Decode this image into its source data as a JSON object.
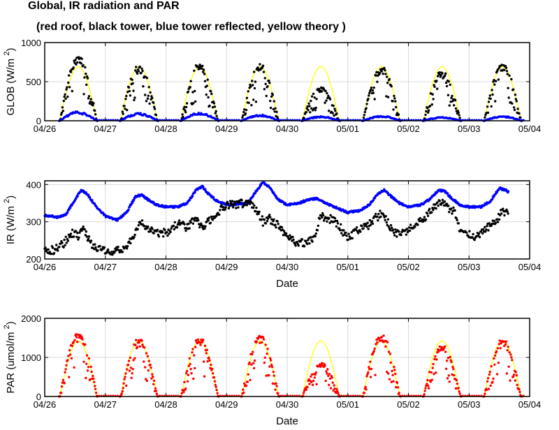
{
  "figure": {
    "title_line1": "Global, IR radiation and PAR",
    "title_line2": "(red roof, black tower, blue tower reflected, yellow theory )"
  },
  "chart_data": [
    {
      "type": "scatter",
      "ylabel": "GLOB (W/m",
      "ylabel_superscript": "2",
      "ylabel_close": ")",
      "xlabel": "",
      "x_ticks": [
        "04/26",
        "04/27",
        "04/28",
        "04/29",
        "04/30",
        "05/01",
        "05/02",
        "05/03",
        "05/04"
      ],
      "xlim": [
        "04/26",
        "05/04"
      ],
      "ylim": [
        0,
        1000
      ],
      "y_ticks": [
        0,
        500,
        1000
      ],
      "grid": true,
      "series": [
        {
          "color": "#ffff00",
          "kind": "line",
          "shape": "theory",
          "peaks": [
            690,
            690,
            690,
            690,
            690,
            690,
            690,
            690
          ]
        },
        {
          "color": "#000000",
          "kind": "dots",
          "shape": "cloudy",
          "peaks": [
            820,
            700,
            710,
            720,
            420,
            680,
            620,
            710
          ]
        },
        {
          "color": "#0000ff",
          "kind": "dots",
          "shape": "reflected",
          "peaks": [
            115,
            95,
            100,
            75,
            55,
            60,
            45,
            60
          ]
        }
      ]
    },
    {
      "type": "scatter",
      "ylabel": "IR (W/m",
      "ylabel_superscript": "2",
      "ylabel_close": ")",
      "xlabel": "Date",
      "x_ticks": [
        "04/26",
        "04/27",
        "04/28",
        "04/29",
        "04/30",
        "05/01",
        "05/02",
        "05/03",
        "05/04"
      ],
      "xlim": [
        "04/26",
        "05/04"
      ],
      "ylim": [
        200,
        410
      ],
      "y_ticks": [
        200,
        300,
        400
      ],
      "grid": true,
      "series": [
        {
          "color": "#0000ff",
          "kind": "dots",
          "x": [
            0,
            0.2,
            0.35,
            0.5,
            0.6,
            0.7,
            0.85,
            1.0,
            1.2,
            1.35,
            1.5,
            1.6,
            1.7,
            1.85,
            2.0,
            2.2,
            2.35,
            2.5,
            2.6,
            2.7,
            2.85,
            3.0,
            3.2,
            3.35,
            3.5,
            3.6,
            3.7,
            3.85,
            4.0,
            4.2,
            4.35,
            4.5,
            4.6,
            4.7,
            4.85,
            5.0,
            5.2,
            5.35,
            5.5,
            5.6,
            5.7,
            5.85,
            6.0,
            6.2,
            6.35,
            6.5,
            6.6,
            6.7,
            6.85,
            7.0,
            7.2,
            7.35,
            7.5,
            7.6,
            7.65
          ],
          "y": [
            318,
            312,
            320,
            360,
            385,
            375,
            340,
            315,
            305,
            325,
            368,
            372,
            360,
            345,
            340,
            340,
            350,
            385,
            395,
            375,
            355,
            345,
            348,
            350,
            385,
            405,
            395,
            360,
            345,
            350,
            360,
            362,
            352,
            345,
            335,
            325,
            330,
            345,
            375,
            385,
            370,
            350,
            340,
            345,
            360,
            385,
            382,
            365,
            345,
            340,
            340,
            355,
            390,
            385,
            380
          ]
        },
        {
          "color": "#000000",
          "kind": "dots",
          "x": [
            0,
            0.15,
            0.3,
            0.45,
            0.55,
            0.65,
            0.75,
            0.85,
            1.0,
            1.2,
            1.35,
            1.5,
            1.6,
            1.7,
            1.85,
            2.0,
            2.2,
            2.35,
            2.5,
            2.6,
            2.7,
            2.85,
            3.0,
            3.2,
            3.35,
            3.5,
            3.6,
            3.7,
            3.85,
            4.0,
            4.15,
            4.3,
            4.45,
            4.55,
            4.65,
            4.75,
            4.85,
            5.0,
            5.15,
            5.3,
            5.45,
            5.55,
            5.65,
            5.75,
            5.85,
            6.0,
            6.15,
            6.3,
            6.45,
            6.55,
            6.65,
            6.75,
            6.85,
            7.0,
            7.15,
            7.3,
            7.45,
            7.55,
            7.65
          ],
          "y": [
            228,
            222,
            240,
            270,
            260,
            280,
            245,
            228,
            220,
            222,
            235,
            275,
            300,
            285,
            270,
            270,
            295,
            285,
            315,
            280,
            300,
            325,
            345,
            348,
            350,
            330,
            300,
            310,
            290,
            260,
            245,
            240,
            255,
            315,
            310,
            305,
            290,
            255,
            275,
            285,
            310,
            320,
            300,
            275,
            265,
            280,
            295,
            315,
            345,
            355,
            335,
            330,
            275,
            265,
            260,
            285,
            300,
            330,
            320
          ]
        }
      ]
    },
    {
      "type": "scatter",
      "ylabel": "PAR (umol/m",
      "ylabel_superscript": "2",
      "ylabel_close": ")",
      "xlabel": "Date",
      "x_ticks": [
        "04/26",
        "04/27",
        "04/28",
        "04/29",
        "04/30",
        "05/01",
        "05/02",
        "05/03",
        "05/04"
      ],
      "xlim": [
        "04/26",
        "05/04"
      ],
      "ylim": [
        0,
        2000
      ],
      "y_ticks": [
        0,
        1000,
        2000
      ],
      "grid": true,
      "series": [
        {
          "color": "#ffff00",
          "kind": "line",
          "shape": "theory",
          "peaks": [
            1420,
            1420,
            1420,
            1420,
            1420,
            1420,
            1420,
            1420
          ]
        },
        {
          "color": "#ff0000",
          "kind": "dots",
          "shape": "cloudy",
          "peaks": [
            1620,
            1450,
            1460,
            1540,
            850,
            1570,
            1300,
            1440
          ]
        }
      ]
    }
  ]
}
